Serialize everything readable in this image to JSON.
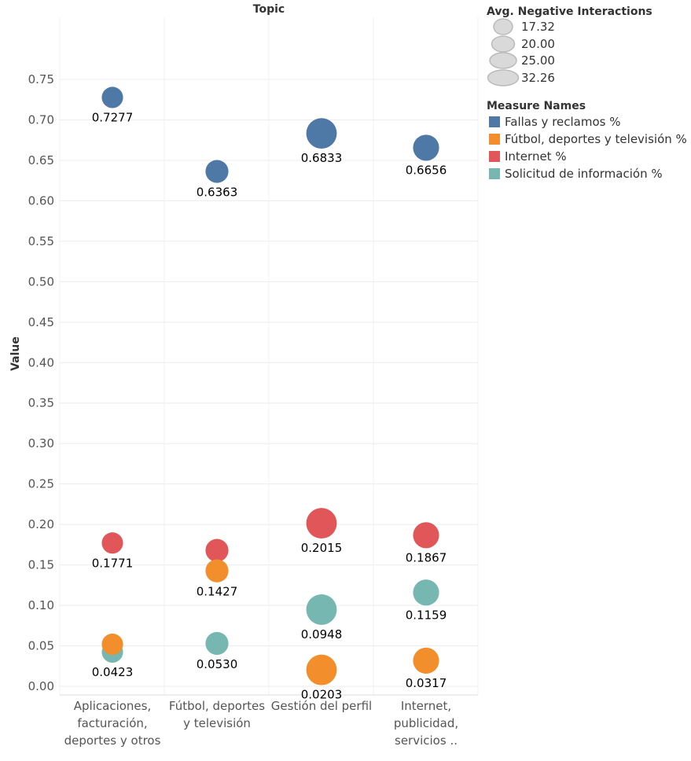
{
  "chart_data": {
    "type": "scatter",
    "title": "Topic",
    "ylabel": "Value",
    "ylim": [
      0,
      0.77
    ],
    "yticks": [
      "0.00",
      "0.05",
      "0.10",
      "0.15",
      "0.20",
      "0.25",
      "0.30",
      "0.35",
      "0.40",
      "0.45",
      "0.50",
      "0.55",
      "0.60",
      "0.65",
      "0.70",
      "0.75"
    ],
    "categories": [
      [
        "Aplicaciones,",
        "facturación,",
        "deportes y otros"
      ],
      [
        "Fútbol, deportes",
        "y televisión"
      ],
      [
        "Gestión del perfil"
      ],
      [
        "Internet,",
        "publicidad,",
        "servicios .."
      ]
    ],
    "size_measure": "Avg. Negative Interactions",
    "size_by_category": [
      17.32,
      20.0,
      32.26,
      25.0
    ],
    "series": [
      {
        "name": "Fallas y reclamos %",
        "color": "#4e79a7",
        "values": [
          0.7277,
          0.6363,
          0.6833,
          0.6656
        ],
        "labels": [
          "0.7277",
          "0.6363",
          "0.6833",
          "0.6656"
        ]
      },
      {
        "name": "Fútbol, deportes y televisión %",
        "color": "#f28e2b",
        "values": [
          0.052,
          0.1427,
          0.0203,
          0.0317
        ],
        "labels": [
          "",
          "0.1427",
          "0.0203",
          "0.0317"
        ]
      },
      {
        "name": "Internet %",
        "color": "#e15759",
        "values": [
          0.1771,
          0.168,
          0.2015,
          0.1867
        ],
        "labels": [
          "0.1771",
          "",
          "0.2015",
          "0.1867"
        ]
      },
      {
        "name": "Solicitud de información %",
        "color": "#76b7b2",
        "values": [
          0.0423,
          0.053,
          0.0948,
          0.1159
        ],
        "labels": [
          "0.0423",
          "0.0530",
          "0.0948",
          "0.1159"
        ]
      }
    ],
    "legend_size": {
      "title": "Avg. Negative Interactions",
      "items": [
        "17.32",
        "20.00",
        "25.00",
        "32.26"
      ]
    },
    "legend_color": {
      "title": "Measure Names",
      "items": [
        "Fallas y reclamos %",
        "Fútbol, deportes y televisión %",
        "Internet %",
        "Solicitud de información %"
      ]
    },
    "legend_placement": "right",
    "grid": true
  }
}
